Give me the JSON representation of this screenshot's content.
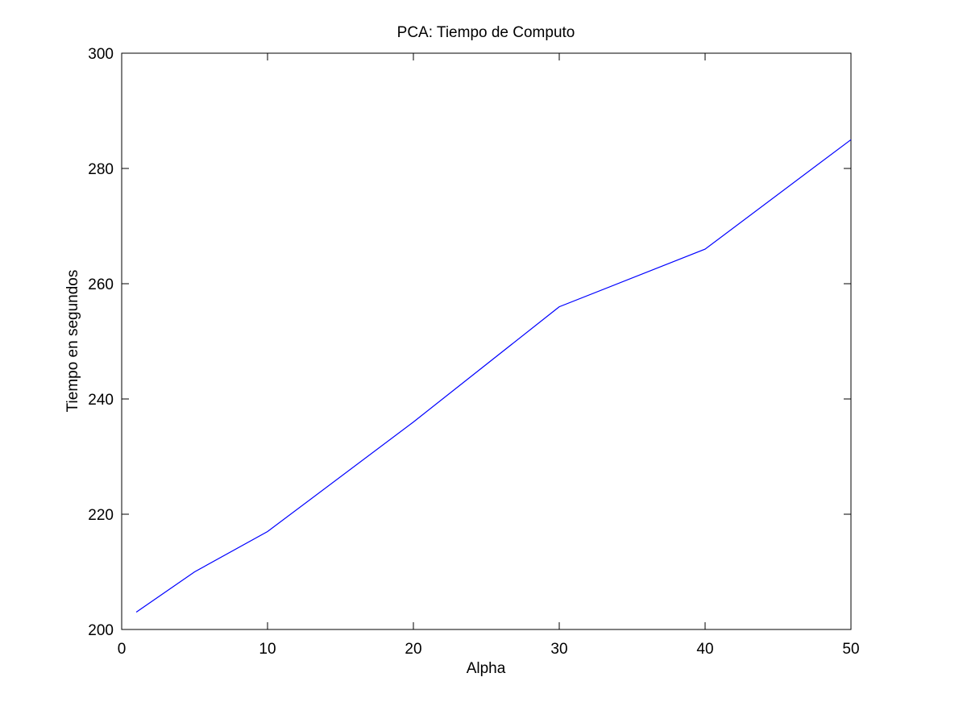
{
  "chart_data": {
    "type": "line",
    "title": "PCA: Tiempo de Computo",
    "xlabel": "Alpha",
    "ylabel": "Tiempo en segundos",
    "xlim": [
      0,
      50
    ],
    "ylim": [
      200,
      300
    ],
    "xticks": [
      0,
      10,
      20,
      30,
      40,
      50
    ],
    "yticks": [
      200,
      220,
      240,
      260,
      280,
      300
    ],
    "grid": false,
    "legend": "none",
    "series": [
      {
        "color": "#0000ff",
        "x": [
          1,
          5,
          10,
          20,
          30,
          40,
          50
        ],
        "y": [
          203,
          210,
          217,
          236,
          256,
          266,
          285
        ]
      }
    ]
  }
}
